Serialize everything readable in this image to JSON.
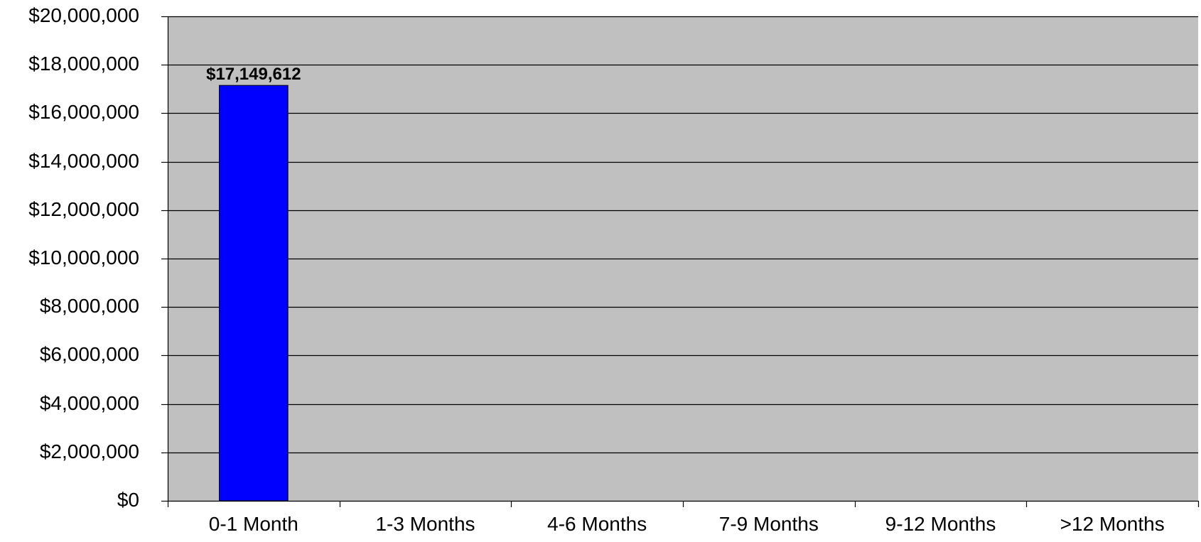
{
  "chart_data": {
    "type": "bar",
    "title": "",
    "xlabel": "",
    "ylabel": "",
    "categories": [
      "0-1 Month",
      "1-3 Months",
      "4-6 Months",
      "7-9 Months",
      "9-12 Months",
      ">12 Months"
    ],
    "values": [
      17149612,
      0,
      0,
      0,
      0,
      0
    ],
    "data_labels": [
      "$17,149,612",
      "",
      "",
      "",
      "",
      ""
    ],
    "ylim": [
      0,
      20000000
    ],
    "yticks": [
      0,
      2000000,
      4000000,
      6000000,
      8000000,
      10000000,
      12000000,
      14000000,
      16000000,
      18000000,
      20000000
    ],
    "ytick_labels": [
      "$0",
      "$2,000,000",
      "$4,000,000",
      "$6,000,000",
      "$8,000,000",
      "$10,000,000",
      "$12,000,000",
      "$14,000,000",
      "$16,000,000",
      "$18,000,000",
      "$20,000,000"
    ],
    "grid": true,
    "legend": "none",
    "colors": {
      "bar": "#0000ff",
      "plot_background": "#c0c0c0",
      "gridline": "#000000"
    }
  }
}
